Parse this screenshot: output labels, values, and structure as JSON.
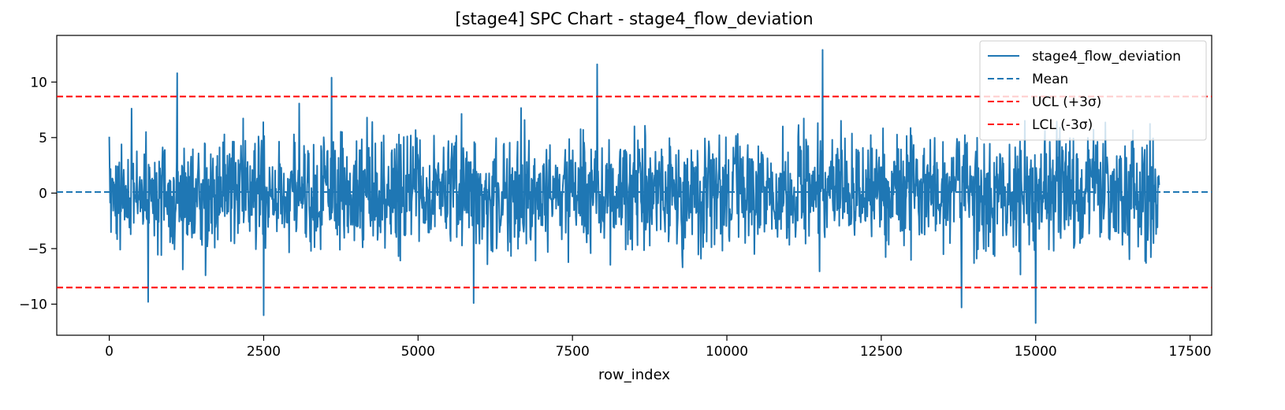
{
  "chart_data": {
    "type": "line",
    "title": "[stage4] SPC Chart - stage4_flow_deviation",
    "xlabel": "row_index",
    "ylabel": "",
    "xlim": [
      -850,
      17850
    ],
    "ylim": [
      -12.8,
      14.2
    ],
    "xticks": [
      0,
      2500,
      5000,
      7500,
      10000,
      12500,
      15000,
      17500
    ],
    "xtick_labels": [
      "0",
      "2500",
      "5000",
      "7500",
      "10000",
      "12500",
      "15000",
      "17500"
    ],
    "yticks": [
      -10,
      -5,
      0,
      5,
      10
    ],
    "ytick_labels": [
      "−10",
      "−5",
      "0",
      "5",
      "10"
    ],
    "grid": false,
    "legend_position": "top-right",
    "series": [
      {
        "name": "stage4_flow_deviation",
        "color": "#1f77b4",
        "style": "solid",
        "x_range": [
          0,
          17000
        ],
        "typical_band": [
          -5,
          5
        ],
        "notable_points": [
          {
            "x": 1100,
            "y": 10.8
          },
          {
            "x": 3600,
            "y": 10.4
          },
          {
            "x": 7900,
            "y": 11.6
          },
          {
            "x": 11550,
            "y": 12.9
          },
          {
            "x": 630,
            "y": -9.8
          },
          {
            "x": 2500,
            "y": -11.0
          },
          {
            "x": 5900,
            "y": -9.9
          },
          {
            "x": 13800,
            "y": -10.3
          },
          {
            "x": 15000,
            "y": -11.7
          }
        ]
      },
      {
        "name": "Mean",
        "color": "#1f77b4",
        "style": "dashed",
        "value": 0.1
      },
      {
        "name": "UCL (+3σ)",
        "color": "#ff0000",
        "style": "dashed",
        "value": 8.7
      },
      {
        "name": "LCL (-3σ)",
        "color": "#ff0000",
        "style": "dashed",
        "value": -8.5
      }
    ]
  }
}
